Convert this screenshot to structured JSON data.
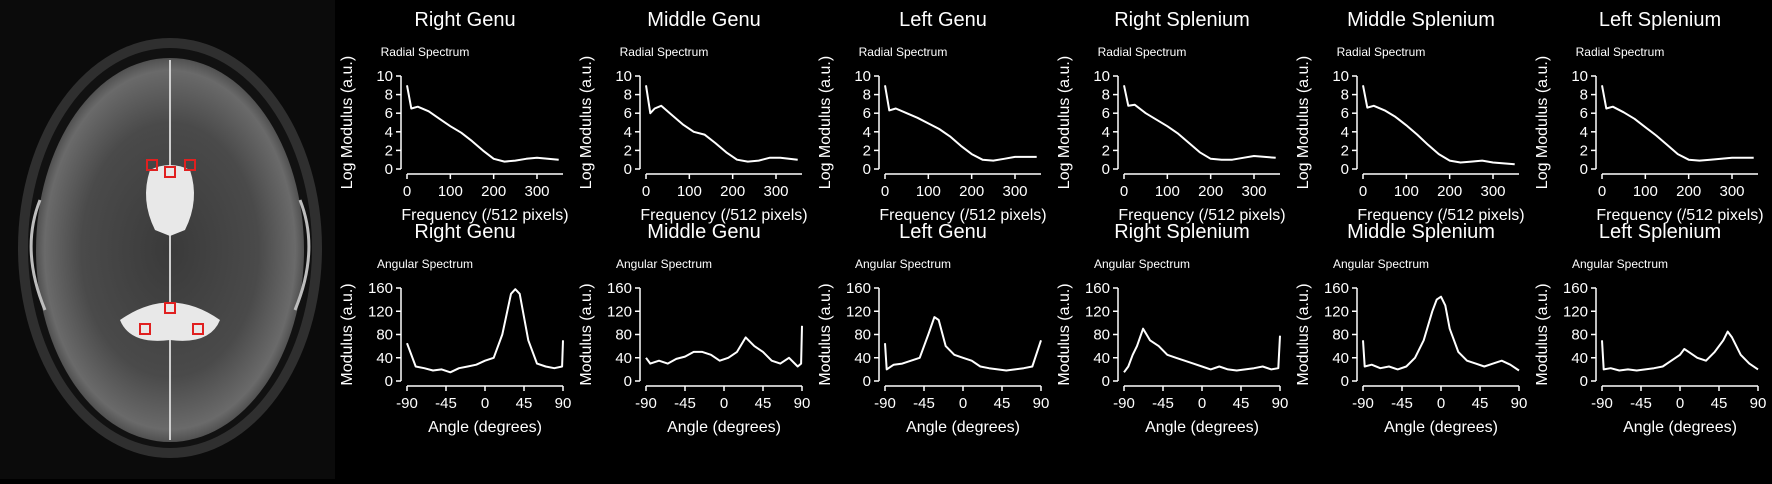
{
  "colors": {
    "background": "#000000",
    "line": "#ffffff",
    "roi": "#e02020"
  },
  "mri": {
    "description_icon": "axial-t2-brain-mri",
    "roi_count": 6
  },
  "chart_data": [
    {
      "type": "line",
      "title": "Right Genu",
      "subtitle": "Radial Spectrum",
      "xlabel": "Frequency (/512 pixels)",
      "ylabel": "Log Modulus (a.u.)",
      "xlim": [
        0,
        360
      ],
      "ylim": [
        0,
        10
      ],
      "xticks": [
        0,
        100,
        200,
        300
      ],
      "yticks": [
        0,
        2,
        4,
        6,
        8,
        10
      ],
      "x": [
        0,
        10,
        25,
        50,
        75,
        100,
        125,
        150,
        175,
        200,
        225,
        250,
        275,
        300,
        325,
        350
      ],
      "y": [
        9,
        6.5,
        6.7,
        6.2,
        5.4,
        4.6,
        3.9,
        3.0,
        2.0,
        1.1,
        0.8,
        0.9,
        1.1,
        1.2,
        1.1,
        1.0
      ]
    },
    {
      "type": "line",
      "title": "Middle Genu",
      "subtitle": "Radial Spectrum",
      "xlabel": "Frequency (/512 pixels)",
      "ylabel": "Log Modulus (a.u.)",
      "xlim": [
        0,
        360
      ],
      "ylim": [
        0,
        10
      ],
      "xticks": [
        0,
        100,
        200,
        300
      ],
      "yticks": [
        0,
        2,
        4,
        6,
        8,
        10
      ],
      "x": [
        0,
        10,
        20,
        35,
        60,
        85,
        110,
        135,
        160,
        185,
        210,
        235,
        260,
        285,
        310,
        350
      ],
      "y": [
        9,
        6.0,
        6.5,
        6.8,
        5.8,
        4.8,
        4.0,
        3.7,
        2.8,
        1.8,
        1.0,
        0.8,
        0.9,
        1.2,
        1.2,
        1.0
      ]
    },
    {
      "type": "line",
      "title": "Left Genu",
      "subtitle": "Radial Spectrum",
      "xlabel": "Frequency (/512 pixels)",
      "ylabel": "Log Modulus (a.u.)",
      "xlim": [
        0,
        360
      ],
      "ylim": [
        0,
        10
      ],
      "xticks": [
        0,
        100,
        200,
        300
      ],
      "yticks": [
        0,
        2,
        4,
        6,
        8,
        10
      ],
      "x": [
        0,
        10,
        25,
        50,
        75,
        100,
        125,
        150,
        175,
        200,
        225,
        250,
        275,
        300,
        325,
        350
      ],
      "y": [
        9,
        6.3,
        6.5,
        6.0,
        5.5,
        4.9,
        4.3,
        3.5,
        2.5,
        1.6,
        1.0,
        0.9,
        1.1,
        1.3,
        1.3,
        1.3
      ]
    },
    {
      "type": "line",
      "title": "Right Splenium",
      "subtitle": "Radial Spectrum",
      "xlabel": "Frequency (/512 pixels)",
      "ylabel": "Log Modulus (a.u.)",
      "xlim": [
        0,
        360
      ],
      "ylim": [
        0,
        10
      ],
      "xticks": [
        0,
        100,
        200,
        300
      ],
      "yticks": [
        0,
        2,
        4,
        6,
        8,
        10
      ],
      "x": [
        0,
        10,
        25,
        50,
        75,
        100,
        125,
        150,
        175,
        200,
        225,
        250,
        275,
        300,
        325,
        350
      ],
      "y": [
        9,
        6.8,
        6.9,
        6.0,
        5.3,
        4.6,
        3.8,
        2.8,
        1.8,
        1.1,
        1.0,
        1.0,
        1.2,
        1.4,
        1.3,
        1.2
      ]
    },
    {
      "type": "line",
      "title": "Middle Splenium",
      "subtitle": "Radial Spectrum",
      "xlabel": "Frequency (/512 pixels)",
      "ylabel": "Log Modulus (a.u.)",
      "xlim": [
        0,
        360
      ],
      "ylim": [
        0,
        10
      ],
      "xticks": [
        0,
        100,
        200,
        300
      ],
      "yticks": [
        0,
        2,
        4,
        6,
        8,
        10
      ],
      "x": [
        0,
        10,
        25,
        50,
        75,
        100,
        125,
        150,
        175,
        200,
        225,
        250,
        275,
        300,
        325,
        350
      ],
      "y": [
        9,
        6.6,
        6.8,
        6.3,
        5.6,
        4.7,
        3.7,
        2.6,
        1.6,
        0.9,
        0.7,
        0.8,
        0.9,
        0.7,
        0.6,
        0.5
      ]
    },
    {
      "type": "line",
      "title": "Left Splenium",
      "subtitle": "Radial Spectrum",
      "xlabel": "Frequency (/512 pixels)",
      "ylabel": "Log Modulus (a.u.)",
      "xlim": [
        0,
        360
      ],
      "ylim": [
        0,
        10
      ],
      "xticks": [
        0,
        100,
        200,
        300
      ],
      "yticks": [
        0,
        2,
        4,
        6,
        8,
        10
      ],
      "x": [
        0,
        10,
        25,
        50,
        75,
        100,
        125,
        150,
        175,
        200,
        225,
        250,
        275,
        300,
        325,
        350
      ],
      "y": [
        9,
        6.5,
        6.7,
        6.1,
        5.4,
        4.5,
        3.6,
        2.6,
        1.6,
        1.0,
        0.9,
        1.0,
        1.1,
        1.2,
        1.2,
        1.2
      ]
    },
    {
      "type": "line",
      "title": "Right Genu",
      "subtitle": "Angular Spectrum",
      "xlabel": "Angle (degrees)",
      "ylabel": "Modulus (a.u.)",
      "xlim": [
        -90,
        90
      ],
      "ylim": [
        0,
        160
      ],
      "xticks": [
        -90,
        -45,
        0,
        45,
        90
      ],
      "yticks": [
        0,
        40,
        80,
        120,
        160
      ],
      "x": [
        -90,
        -80,
        -70,
        -60,
        -50,
        -40,
        -30,
        -20,
        -10,
        0,
        10,
        20,
        30,
        35,
        40,
        50,
        60,
        70,
        80,
        89,
        90
      ],
      "y": [
        65,
        25,
        22,
        18,
        20,
        15,
        22,
        25,
        28,
        35,
        40,
        80,
        150,
        158,
        150,
        70,
        30,
        25,
        22,
        25,
        70
      ]
    },
    {
      "type": "line",
      "title": "Middle Genu",
      "subtitle": "Angular Spectrum",
      "xlabel": "Angle (degrees)",
      "ylabel": "Modulus (a.u.)",
      "xlim": [
        -90,
        90
      ],
      "ylim": [
        0,
        160
      ],
      "xticks": [
        -90,
        -45,
        0,
        45,
        90
      ],
      "yticks": [
        0,
        40,
        80,
        120,
        160
      ],
      "x": [
        -90,
        -85,
        -75,
        -65,
        -55,
        -45,
        -35,
        -25,
        -15,
        -5,
        5,
        15,
        25,
        35,
        45,
        55,
        65,
        75,
        85,
        89,
        90
      ],
      "y": [
        40,
        30,
        35,
        30,
        38,
        42,
        50,
        50,
        45,
        35,
        40,
        50,
        75,
        60,
        50,
        35,
        30,
        40,
        25,
        30,
        95
      ]
    },
    {
      "type": "line",
      "title": "Left Genu",
      "subtitle": "Angular Spectrum",
      "xlabel": "Angle (degrees)",
      "ylabel": "Modulus (a.u.)",
      "xlim": [
        -90,
        90
      ],
      "ylim": [
        0,
        160
      ],
      "xticks": [
        -90,
        -45,
        0,
        45,
        90
      ],
      "yticks": [
        0,
        40,
        80,
        120,
        160
      ],
      "x": [
        -90,
        -88,
        -80,
        -70,
        -60,
        -50,
        -40,
        -33,
        -28,
        -20,
        -10,
        0,
        10,
        20,
        30,
        40,
        50,
        60,
        70,
        80,
        90
      ],
      "y": [
        65,
        20,
        28,
        30,
        35,
        40,
        80,
        110,
        105,
        60,
        45,
        40,
        35,
        25,
        22,
        20,
        18,
        20,
        22,
        25,
        70
      ]
    },
    {
      "type": "line",
      "title": "Right Splenium",
      "subtitle": "Angular Spectrum",
      "xlabel": "Angle (degrees)",
      "ylabel": "Modulus (a.u.)",
      "xlim": [
        -90,
        90
      ],
      "ylim": [
        0,
        160
      ],
      "xticks": [
        -90,
        -45,
        0,
        45,
        90
      ],
      "yticks": [
        0,
        40,
        80,
        120,
        160
      ],
      "x": [
        -90,
        -85,
        -80,
        -75,
        -68,
        -60,
        -50,
        -40,
        -30,
        -20,
        -10,
        0,
        10,
        20,
        30,
        40,
        50,
        60,
        70,
        80,
        88,
        90
      ],
      "y": [
        15,
        25,
        45,
        60,
        90,
        70,
        60,
        45,
        40,
        35,
        30,
        25,
        20,
        25,
        20,
        18,
        20,
        22,
        25,
        20,
        22,
        78
      ]
    },
    {
      "type": "line",
      "title": "Middle Splenium",
      "subtitle": "Angular Spectrum",
      "xlabel": "Angle (degrees)",
      "ylabel": "Modulus (a.u.)",
      "xlim": [
        -90,
        90
      ],
      "ylim": [
        0,
        160
      ],
      "xticks": [
        -90,
        -45,
        0,
        45,
        90
      ],
      "yticks": [
        0,
        40,
        80,
        120,
        160
      ],
      "x": [
        -90,
        -88,
        -80,
        -70,
        -60,
        -50,
        -40,
        -30,
        -20,
        -10,
        -5,
        0,
        5,
        10,
        20,
        30,
        40,
        50,
        60,
        70,
        80,
        90
      ],
      "y": [
        70,
        25,
        28,
        22,
        25,
        20,
        25,
        40,
        70,
        120,
        140,
        145,
        130,
        90,
        50,
        35,
        30,
        25,
        30,
        35,
        28,
        18
      ]
    },
    {
      "type": "line",
      "title": "Left Splenium",
      "subtitle": "Angular Spectrum",
      "xlabel": "Angle (degrees)",
      "ylabel": "Modulus (a.u.)",
      "xlim": [
        -90,
        90
      ],
      "ylim": [
        0,
        160
      ],
      "xticks": [
        -90,
        -45,
        0,
        45,
        90
      ],
      "yticks": [
        0,
        40,
        80,
        120,
        160
      ],
      "x": [
        -90,
        -88,
        -80,
        -70,
        -60,
        -50,
        -40,
        -30,
        -20,
        -10,
        0,
        5,
        10,
        20,
        30,
        40,
        50,
        55,
        60,
        70,
        80,
        90
      ],
      "y": [
        70,
        20,
        22,
        18,
        20,
        18,
        20,
        22,
        25,
        35,
        45,
        55,
        50,
        40,
        35,
        50,
        70,
        85,
        75,
        45,
        30,
        20
      ]
    }
  ]
}
